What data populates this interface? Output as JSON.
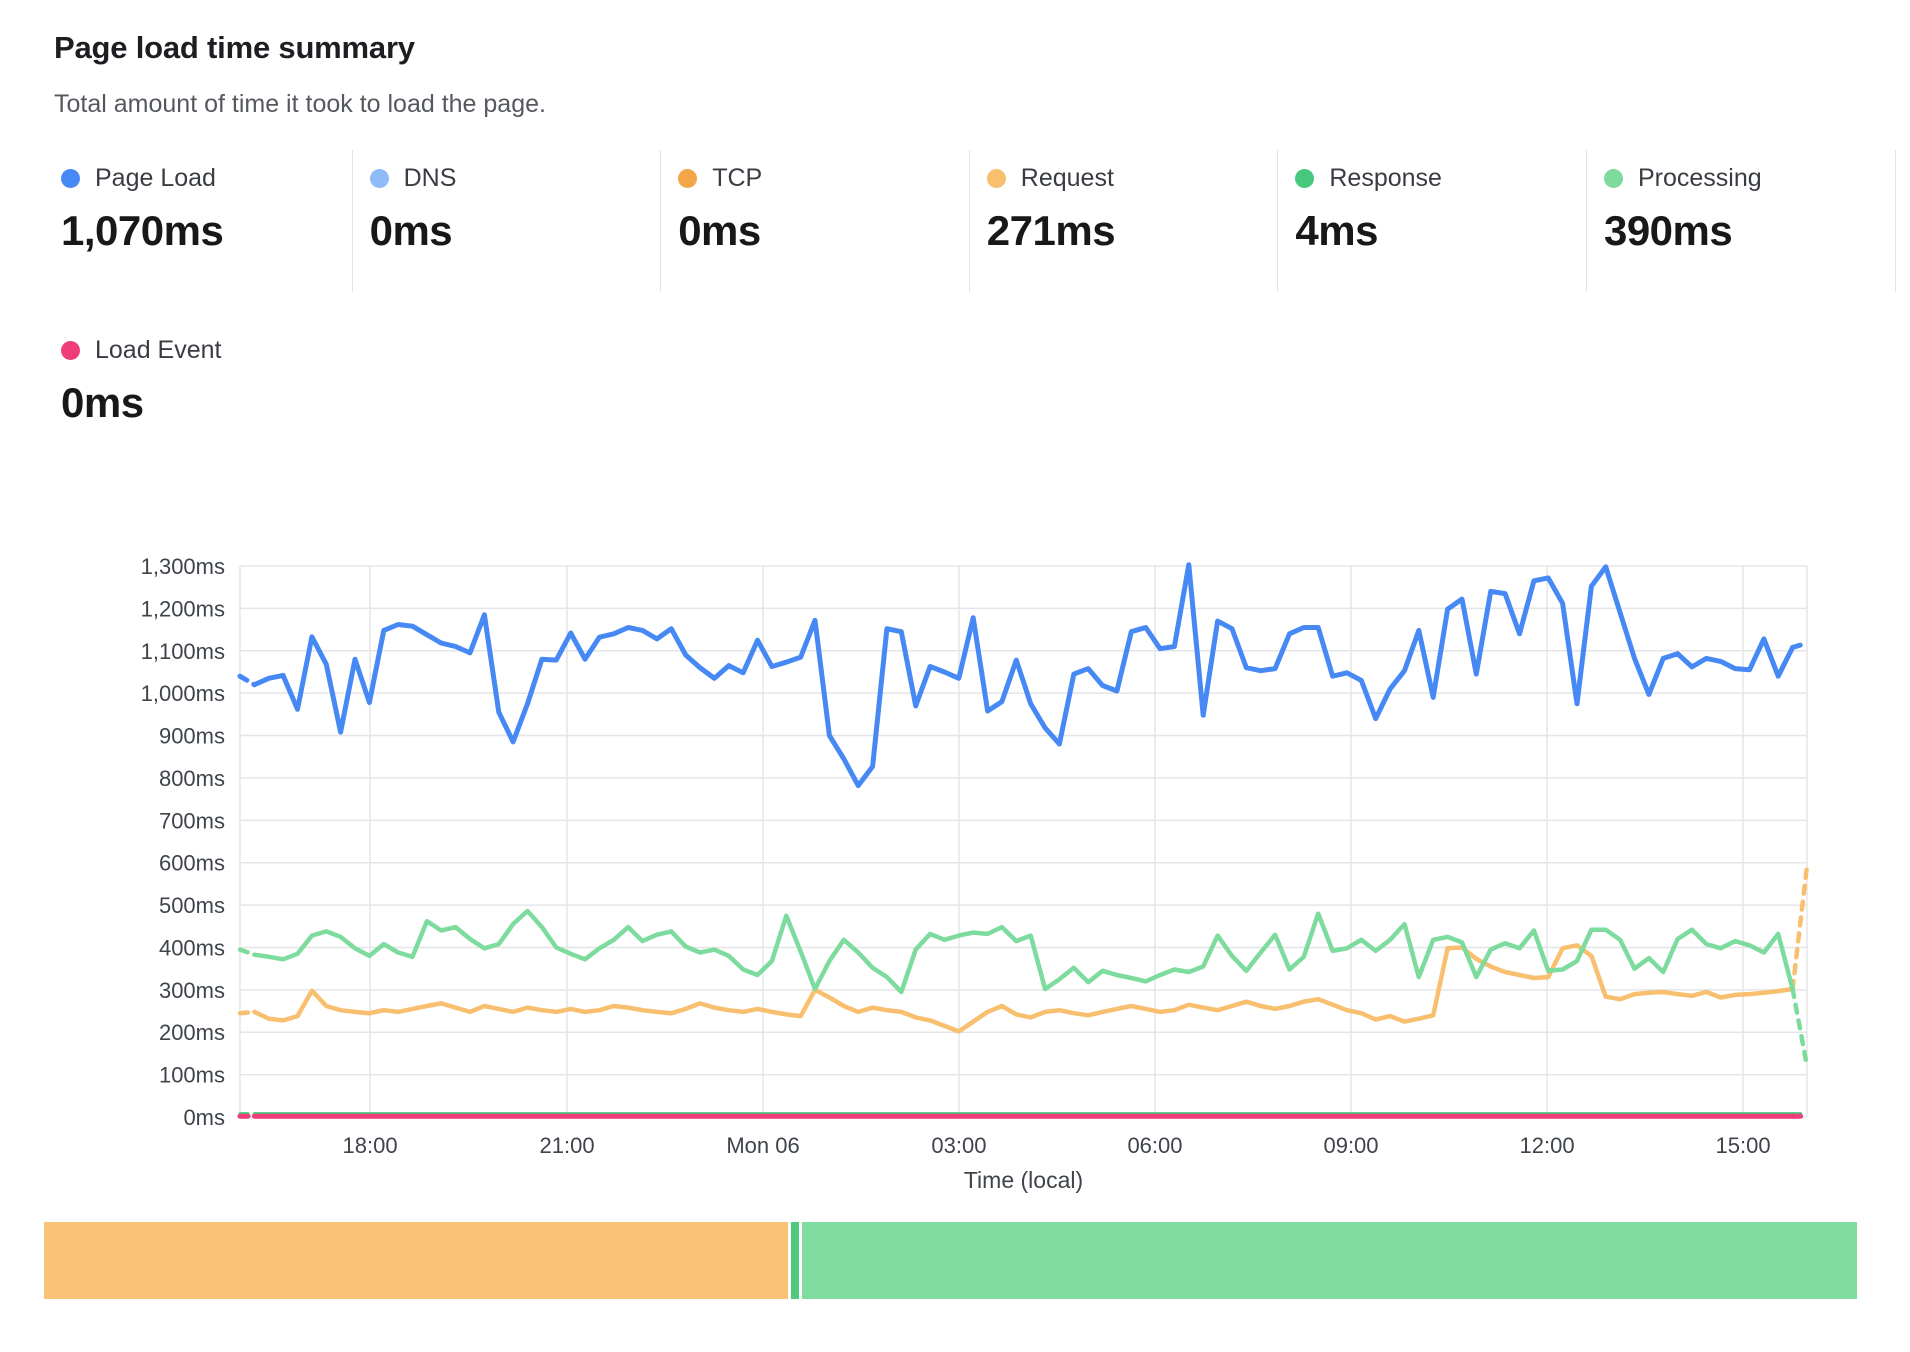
{
  "header": {
    "title": "Page load time summary",
    "subtitle": "Total amount of time it took to load the page."
  },
  "metrics": [
    {
      "label": "Page Load",
      "value": "1,070ms",
      "color": "#4789f4"
    },
    {
      "label": "DNS",
      "value": "0ms",
      "color": "#8fbcf9"
    },
    {
      "label": "TCP",
      "value": "0ms",
      "color": "#f2a649"
    },
    {
      "label": "Request",
      "value": "271ms",
      "color": "#f7bf6e"
    },
    {
      "label": "Response",
      "value": "4ms",
      "color": "#46c97e"
    },
    {
      "label": "Processing",
      "value": "390ms",
      "color": "#7ddb9d"
    },
    {
      "label": "Load Event",
      "value": "0ms",
      "color": "#ee3d77"
    }
  ],
  "chart_data": {
    "type": "line",
    "xlabel": "Time (local)",
    "ylabel": "",
    "ylim": [
      0,
      1300
    ],
    "grid": true,
    "grid_color": "#e4e5e8",
    "axis_text_color": "#3f444b",
    "y_ticks": [
      "1,300ms",
      "1,200ms",
      "1,100ms",
      "1,000ms",
      "900ms",
      "800ms",
      "700ms",
      "600ms",
      "500ms",
      "400ms",
      "300ms",
      "200ms",
      "100ms",
      "0ms"
    ],
    "x_ticks": [
      {
        "label": "18:00",
        "pos": 0.083
      },
      {
        "label": "21:00",
        "pos": 0.2087
      },
      {
        "label": "Mon 06",
        "pos": 0.3338
      },
      {
        "label": "03:00",
        "pos": 0.4588
      },
      {
        "label": "06:00",
        "pos": 0.5839
      },
      {
        "label": "09:00",
        "pos": 0.709
      },
      {
        "label": "12:00",
        "pos": 0.8341
      },
      {
        "label": "15:00",
        "pos": 0.9592
      }
    ],
    "series": [
      {
        "name": "DNS",
        "color": "#8fbcf9",
        "width": 2,
        "constant": 0,
        "points": 110,
        "dash_head": 1,
        "dash_tail": 1
      },
      {
        "name": "TCP",
        "color": "#f2a649",
        "width": 2,
        "constant": 0,
        "points": 110,
        "dash_head": 1,
        "dash_tail": 1
      },
      {
        "name": "Request",
        "color": "#f7bf6e",
        "width": 4.5,
        "dash_head": 1,
        "dash_tail": 1,
        "values": [
          245,
          248,
          232,
          228,
          238,
          298,
          262,
          252,
          248,
          245,
          252,
          248,
          255,
          262,
          268,
          258,
          248,
          262,
          255,
          248,
          258,
          252,
          248,
          255,
          248,
          252,
          262,
          258,
          252,
          248,
          245,
          255,
          268,
          258,
          252,
          248,
          255,
          248,
          242,
          238,
          300,
          282,
          262,
          248,
          258,
          252,
          248,
          235,
          228,
          215,
          202,
          225,
          248,
          262,
          242,
          235,
          248,
          252,
          245,
          240,
          248,
          255,
          262,
          255,
          248,
          252,
          265,
          258,
          252,
          262,
          272,
          262,
          255,
          262,
          272,
          278,
          265,
          252,
          245,
          230,
          238,
          225,
          232,
          240,
          398,
          400,
          373,
          355,
          342,
          335,
          328,
          330,
          398,
          405,
          380,
          284,
          278,
          290,
          293,
          295,
          290,
          286,
          295,
          282,
          288,
          290,
          293,
          297,
          302,
          592
        ]
      },
      {
        "name": "Response",
        "color": "#46c97e",
        "width": 3,
        "constant": 8,
        "points": 110,
        "dash_head": 1,
        "dash_tail": 1
      },
      {
        "name": "Processing",
        "color": "#7ddb9d",
        "width": 4.5,
        "dash_head": 1,
        "dash_tail": 1,
        "values": [
          395,
          383,
          378,
          372,
          385,
          428,
          438,
          425,
          398,
          380,
          408,
          388,
          378,
          462,
          440,
          448,
          420,
          398,
          408,
          455,
          486,
          448,
          400,
          385,
          372,
          398,
          418,
          448,
          415,
          430,
          438,
          402,
          388,
          395,
          380,
          348,
          335,
          368,
          475,
          390,
          302,
          368,
          418,
          388,
          352,
          330,
          295,
          395,
          432,
          418,
          428,
          435,
          432,
          448,
          415,
          428,
          302,
          325,
          352,
          318,
          345,
          335,
          328,
          320,
          335,
          348,
          342,
          355,
          428,
          380,
          345,
          388,
          430,
          348,
          378,
          480,
          392,
          398,
          418,
          392,
          418,
          455,
          330,
          418,
          425,
          412,
          330,
          395,
          410,
          398,
          440,
          345,
          348,
          368,
          442,
          442,
          418,
          350,
          375,
          342,
          420,
          442,
          408,
          398,
          415,
          405,
          388,
          432,
          302,
          120
        ]
      },
      {
        "name": "Load Event",
        "color": "#ee3d77",
        "width": 5,
        "constant": 2,
        "points": 110,
        "dash_head": 1,
        "dash_tail": 1
      },
      {
        "name": "Page Load",
        "color": "#4789f4",
        "width": 5,
        "dash_head": 1,
        "dash_tail": 1,
        "values": [
          1040,
          1020,
          1035,
          1042,
          962,
          1133,
          1068,
          908,
          1080,
          978,
          1148,
          1162,
          1158,
          1138,
          1118,
          1110,
          1095,
          1185,
          955,
          885,
          975,
          1080,
          1078,
          1142,
          1080,
          1132,
          1140,
          1155,
          1148,
          1128,
          1152,
          1090,
          1060,
          1035,
          1065,
          1048,
          1125,
          1063,
          1073,
          1085,
          1172,
          900,
          845,
          782,
          827,
          1152,
          1145,
          970,
          1063,
          1050,
          1035,
          1178,
          958,
          980,
          1078,
          975,
          918,
          880,
          1045,
          1058,
          1018,
          1005,
          1145,
          1155,
          1105,
          1110,
          1303,
          948,
          1170,
          1152,
          1060,
          1053,
          1058,
          1140,
          1155,
          1155,
          1040,
          1048,
          1030,
          940,
          1010,
          1053,
          1148,
          990,
          1198,
          1222,
          1045,
          1240,
          1235,
          1140,
          1265,
          1272,
          1212,
          975,
          1252,
          1298,
          1190,
          1082,
          997,
          1082,
          1093,
          1062,
          1082,
          1075,
          1058,
          1055,
          1128,
          1040,
          1108,
          1118
        ]
      }
    ]
  },
  "timeline_bar": {
    "segments": [
      {
        "name": "request-portion",
        "color": "#f8c377",
        "pct": 41.05
      },
      {
        "name": "bar-gap",
        "color": "#ffffff",
        "pct": 0.17
      },
      {
        "name": "bar-divider",
        "color": "#4fc97e",
        "pct": 0.44
      },
      {
        "name": "bar-gap",
        "color": "#ffffff",
        "pct": 0.17
      },
      {
        "name": "processing-portion",
        "color": "#80db9f",
        "pct": 58.17
      }
    ]
  }
}
